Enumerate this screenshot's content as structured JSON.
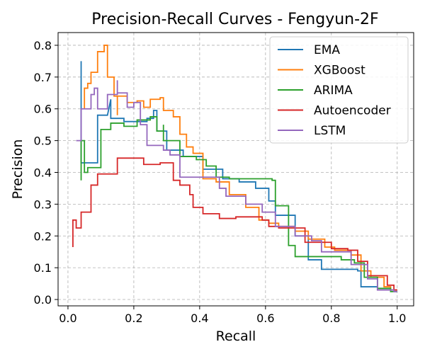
{
  "chart_data": {
    "type": "line",
    "step": true,
    "title": "Precision-Recall Curves - Fengyun-2F",
    "xlabel": "Recall",
    "ylabel": "Precision",
    "xlim": [
      -0.03,
      1.05
    ],
    "ylim": [
      -0.02,
      0.84
    ],
    "xticks": [
      0.0,
      0.2,
      0.4,
      0.6,
      0.8,
      1.0
    ],
    "yticks": [
      0.0,
      0.1,
      0.2,
      0.3,
      0.4,
      0.5,
      0.6,
      0.7,
      0.8
    ],
    "grid": true,
    "legend_position": "top-right",
    "series": [
      {
        "name": "EMA",
        "color": "#1f77b4",
        "points": [
          [
            0.04,
            0.75
          ],
          [
            0.04,
            0.43
          ],
          [
            0.06,
            0.43
          ],
          [
            0.09,
            0.43
          ],
          [
            0.09,
            0.58
          ],
          [
            0.12,
            0.58
          ],
          [
            0.13,
            0.63
          ],
          [
            0.13,
            0.57
          ],
          [
            0.17,
            0.57
          ],
          [
            0.17,
            0.56
          ],
          [
            0.24,
            0.56
          ],
          [
            0.24,
            0.57
          ],
          [
            0.26,
            0.57
          ],
          [
            0.26,
            0.595
          ],
          [
            0.27,
            0.595
          ],
          [
            0.27,
            0.53
          ],
          [
            0.3,
            0.53
          ],
          [
            0.3,
            0.47
          ],
          [
            0.35,
            0.47
          ],
          [
            0.35,
            0.45
          ],
          [
            0.41,
            0.45
          ],
          [
            0.41,
            0.41
          ],
          [
            0.47,
            0.41
          ],
          [
            0.47,
            0.38
          ],
          [
            0.52,
            0.38
          ],
          [
            0.52,
            0.37
          ],
          [
            0.57,
            0.37
          ],
          [
            0.57,
            0.35
          ],
          [
            0.61,
            0.35
          ],
          [
            0.61,
            0.31
          ],
          [
            0.63,
            0.31
          ],
          [
            0.63,
            0.265
          ],
          [
            0.69,
            0.265
          ],
          [
            0.69,
            0.2
          ],
          [
            0.73,
            0.2
          ],
          [
            0.73,
            0.125
          ],
          [
            0.77,
            0.125
          ],
          [
            0.77,
            0.095
          ],
          [
            0.88,
            0.095
          ],
          [
            0.88,
            0.09
          ],
          [
            0.89,
            0.09
          ],
          [
            0.89,
            0.04
          ],
          [
            0.94,
            0.04
          ],
          [
            0.94,
            0.03
          ],
          [
            0.96,
            0.03
          ],
          [
            0.96,
            0.03
          ],
          [
            1.0,
            0.03
          ]
        ]
      },
      {
        "name": "XGBoost",
        "color": "#ff7f0e",
        "points": [
          [
            0.05,
            0.6
          ],
          [
            0.05,
            0.665
          ],
          [
            0.06,
            0.665
          ],
          [
            0.06,
            0.68
          ],
          [
            0.07,
            0.68
          ],
          [
            0.07,
            0.715
          ],
          [
            0.09,
            0.715
          ],
          [
            0.09,
            0.78
          ],
          [
            0.11,
            0.78
          ],
          [
            0.11,
            0.8
          ],
          [
            0.12,
            0.8
          ],
          [
            0.12,
            0.7
          ],
          [
            0.14,
            0.7
          ],
          [
            0.14,
            0.64
          ],
          [
            0.15,
            0.64
          ],
          [
            0.15,
            0.58
          ],
          [
            0.15,
            0.64
          ],
          [
            0.18,
            0.64
          ],
          [
            0.18,
            0.62
          ],
          [
            0.21,
            0.62
          ],
          [
            0.21,
            0.625
          ],
          [
            0.23,
            0.625
          ],
          [
            0.23,
            0.605
          ],
          [
            0.25,
            0.605
          ],
          [
            0.25,
            0.63
          ],
          [
            0.28,
            0.63
          ],
          [
            0.28,
            0.635
          ],
          [
            0.29,
            0.635
          ],
          [
            0.29,
            0.595
          ],
          [
            0.32,
            0.595
          ],
          [
            0.32,
            0.575
          ],
          [
            0.34,
            0.575
          ],
          [
            0.34,
            0.52
          ],
          [
            0.36,
            0.52
          ],
          [
            0.36,
            0.48
          ],
          [
            0.38,
            0.48
          ],
          [
            0.38,
            0.46
          ],
          [
            0.41,
            0.46
          ],
          [
            0.41,
            0.38
          ],
          [
            0.45,
            0.38
          ],
          [
            0.45,
            0.37
          ],
          [
            0.49,
            0.37
          ],
          [
            0.49,
            0.33
          ],
          [
            0.54,
            0.33
          ],
          [
            0.54,
            0.29
          ],
          [
            0.58,
            0.29
          ],
          [
            0.58,
            0.25
          ],
          [
            0.61,
            0.25
          ],
          [
            0.61,
            0.24
          ],
          [
            0.64,
            0.24
          ],
          [
            0.64,
            0.23
          ],
          [
            0.69,
            0.23
          ],
          [
            0.69,
            0.215
          ],
          [
            0.73,
            0.215
          ],
          [
            0.73,
            0.19
          ],
          [
            0.78,
            0.19
          ],
          [
            0.78,
            0.165
          ],
          [
            0.81,
            0.165
          ],
          [
            0.81,
            0.155
          ],
          [
            0.86,
            0.155
          ],
          [
            0.86,
            0.14
          ],
          [
            0.89,
            0.14
          ],
          [
            0.89,
            0.09
          ],
          [
            0.92,
            0.09
          ],
          [
            0.92,
            0.07
          ],
          [
            0.96,
            0.07
          ],
          [
            0.96,
            0.04
          ],
          [
            0.98,
            0.04
          ],
          [
            0.98,
            0.03
          ],
          [
            1.0,
            0.03
          ]
        ]
      },
      {
        "name": "ARIMA",
        "color": "#2ca02c",
        "points": [
          [
            0.04,
            0.375
          ],
          [
            0.04,
            0.5
          ],
          [
            0.05,
            0.5
          ],
          [
            0.05,
            0.4
          ],
          [
            0.06,
            0.4
          ],
          [
            0.06,
            0.415
          ],
          [
            0.1,
            0.415
          ],
          [
            0.1,
            0.535
          ],
          [
            0.13,
            0.535
          ],
          [
            0.13,
            0.555
          ],
          [
            0.17,
            0.555
          ],
          [
            0.17,
            0.545
          ],
          [
            0.21,
            0.545
          ],
          [
            0.21,
            0.565
          ],
          [
            0.25,
            0.565
          ],
          [
            0.25,
            0.575
          ],
          [
            0.27,
            0.575
          ],
          [
            0.27,
            0.53
          ],
          [
            0.29,
            0.53
          ],
          [
            0.29,
            0.55
          ],
          [
            0.29,
            0.5
          ],
          [
            0.34,
            0.5
          ],
          [
            0.34,
            0.45
          ],
          [
            0.39,
            0.45
          ],
          [
            0.39,
            0.44
          ],
          [
            0.42,
            0.44
          ],
          [
            0.42,
            0.42
          ],
          [
            0.45,
            0.42
          ],
          [
            0.45,
            0.385
          ],
          [
            0.49,
            0.385
          ],
          [
            0.49,
            0.38
          ],
          [
            0.62,
            0.38
          ],
          [
            0.62,
            0.375
          ],
          [
            0.63,
            0.375
          ],
          [
            0.63,
            0.295
          ],
          [
            0.67,
            0.295
          ],
          [
            0.67,
            0.17
          ],
          [
            0.69,
            0.17
          ],
          [
            0.69,
            0.135
          ],
          [
            0.76,
            0.135
          ],
          [
            0.76,
            0.135
          ],
          [
            0.83,
            0.135
          ],
          [
            0.83,
            0.125
          ],
          [
            0.87,
            0.125
          ],
          [
            0.87,
            0.115
          ],
          [
            0.9,
            0.115
          ],
          [
            0.9,
            0.07
          ],
          [
            0.94,
            0.07
          ],
          [
            0.94,
            0.035
          ],
          [
            0.98,
            0.035
          ],
          [
            0.98,
            0.025
          ],
          [
            1.0,
            0.025
          ]
        ]
      },
      {
        "name": "Autoencoder",
        "color": "#d62728",
        "points": [
          [
            0.015,
            0.165
          ],
          [
            0.015,
            0.25
          ],
          [
            0.025,
            0.25
          ],
          [
            0.025,
            0.225
          ],
          [
            0.04,
            0.225
          ],
          [
            0.04,
            0.275
          ],
          [
            0.07,
            0.275
          ],
          [
            0.07,
            0.36
          ],
          [
            0.09,
            0.36
          ],
          [
            0.09,
            0.395
          ],
          [
            0.15,
            0.395
          ],
          [
            0.15,
            0.445
          ],
          [
            0.23,
            0.445
          ],
          [
            0.23,
            0.425
          ],
          [
            0.28,
            0.425
          ],
          [
            0.28,
            0.43
          ],
          [
            0.32,
            0.43
          ],
          [
            0.32,
            0.375
          ],
          [
            0.34,
            0.375
          ],
          [
            0.34,
            0.36
          ],
          [
            0.37,
            0.36
          ],
          [
            0.37,
            0.33
          ],
          [
            0.38,
            0.33
          ],
          [
            0.38,
            0.29
          ],
          [
            0.41,
            0.29
          ],
          [
            0.41,
            0.27
          ],
          [
            0.46,
            0.27
          ],
          [
            0.46,
            0.255
          ],
          [
            0.51,
            0.255
          ],
          [
            0.51,
            0.26
          ],
          [
            0.59,
            0.26
          ],
          [
            0.59,
            0.25
          ],
          [
            0.61,
            0.25
          ],
          [
            0.61,
            0.23
          ],
          [
            0.64,
            0.23
          ],
          [
            0.64,
            0.225
          ],
          [
            0.72,
            0.225
          ],
          [
            0.72,
            0.18
          ],
          [
            0.8,
            0.18
          ],
          [
            0.8,
            0.16
          ],
          [
            0.85,
            0.16
          ],
          [
            0.85,
            0.155
          ],
          [
            0.88,
            0.155
          ],
          [
            0.88,
            0.12
          ],
          [
            0.91,
            0.12
          ],
          [
            0.91,
            0.075
          ],
          [
            0.97,
            0.075
          ],
          [
            0.97,
            0.045
          ],
          [
            0.99,
            0.045
          ],
          [
            0.99,
            0.03
          ],
          [
            1.0,
            0.03
          ]
        ]
      },
      {
        "name": "LSTM",
        "color": "#9467bd",
        "points": [
          [
            0.025,
            0.5
          ],
          [
            0.04,
            0.5
          ],
          [
            0.04,
            0.6
          ],
          [
            0.07,
            0.6
          ],
          [
            0.07,
            0.645
          ],
          [
            0.08,
            0.645
          ],
          [
            0.08,
            0.665
          ],
          [
            0.09,
            0.665
          ],
          [
            0.09,
            0.6
          ],
          [
            0.12,
            0.6
          ],
          [
            0.12,
            0.645
          ],
          [
            0.15,
            0.645
          ],
          [
            0.15,
            0.69
          ],
          [
            0.15,
            0.65
          ],
          [
            0.18,
            0.65
          ],
          [
            0.18,
            0.605
          ],
          [
            0.2,
            0.605
          ],
          [
            0.2,
            0.62
          ],
          [
            0.22,
            0.62
          ],
          [
            0.22,
            0.55
          ],
          [
            0.24,
            0.55
          ],
          [
            0.24,
            0.485
          ],
          [
            0.29,
            0.485
          ],
          [
            0.29,
            0.47
          ],
          [
            0.31,
            0.47
          ],
          [
            0.31,
            0.455
          ],
          [
            0.34,
            0.455
          ],
          [
            0.34,
            0.385
          ],
          [
            0.44,
            0.385
          ],
          [
            0.44,
            0.385
          ],
          [
            0.46,
            0.385
          ],
          [
            0.46,
            0.35
          ],
          [
            0.48,
            0.35
          ],
          [
            0.48,
            0.325
          ],
          [
            0.54,
            0.325
          ],
          [
            0.54,
            0.3
          ],
          [
            0.59,
            0.3
          ],
          [
            0.59,
            0.275
          ],
          [
            0.63,
            0.275
          ],
          [
            0.63,
            0.23
          ],
          [
            0.69,
            0.23
          ],
          [
            0.69,
            0.2
          ],
          [
            0.74,
            0.2
          ],
          [
            0.74,
            0.185
          ],
          [
            0.77,
            0.185
          ],
          [
            0.77,
            0.15
          ],
          [
            0.86,
            0.15
          ],
          [
            0.86,
            0.11
          ],
          [
            0.91,
            0.11
          ],
          [
            0.91,
            0.065
          ],
          [
            0.94,
            0.065
          ],
          [
            0.94,
            0.03
          ],
          [
            0.99,
            0.03
          ],
          [
            0.99,
            0.025
          ],
          [
            1.0,
            0.025
          ]
        ]
      }
    ]
  }
}
